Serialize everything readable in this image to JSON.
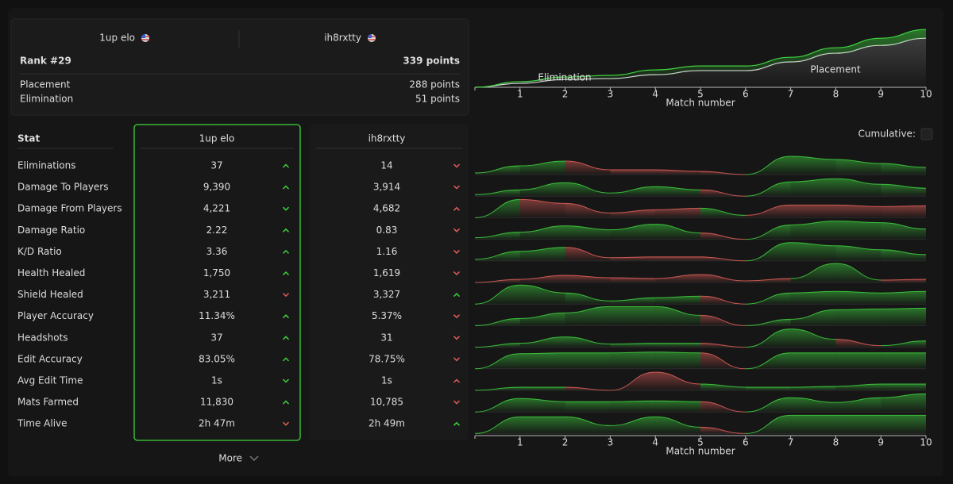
{
  "header": {
    "player1": "1up elo",
    "player2": "ih8rxtty",
    "rank": "Rank #29",
    "points": "339 points",
    "breakdown": [
      {
        "label": "Placement",
        "value": "288 points"
      },
      {
        "label": "Elimination",
        "value": "51 points"
      }
    ]
  },
  "table": {
    "stat_header": "Stat",
    "columns": [
      "1up elo",
      "ih8rxtty"
    ],
    "rows": [
      {
        "stat": "Eliminations",
        "p1": "37",
        "p1_arrow": "up",
        "p1_good": true,
        "p2": "14",
        "p2_arrow": "down",
        "p2_good": false
      },
      {
        "stat": "Damage To Players",
        "p1": "9,390",
        "p1_arrow": "up",
        "p1_good": true,
        "p2": "3,914",
        "p2_arrow": "down",
        "p2_good": false
      },
      {
        "stat": "Damage From Players",
        "p1": "4,221",
        "p1_arrow": "down",
        "p1_good": true,
        "p2": "4,682",
        "p2_arrow": "up",
        "p2_good": false
      },
      {
        "stat": "Damage Ratio",
        "p1": "2.22",
        "p1_arrow": "up",
        "p1_good": true,
        "p2": "0.83",
        "p2_arrow": "down",
        "p2_good": false
      },
      {
        "stat": "K/D Ratio",
        "p1": "3.36",
        "p1_arrow": "up",
        "p1_good": true,
        "p2": "1.16",
        "p2_arrow": "down",
        "p2_good": false
      },
      {
        "stat": "Health Healed",
        "p1": "1,750",
        "p1_arrow": "up",
        "p1_good": true,
        "p2": "1,619",
        "p2_arrow": "down",
        "p2_good": false
      },
      {
        "stat": "Shield Healed",
        "p1": "3,211",
        "p1_arrow": "down",
        "p1_good": false,
        "p2": "3,327",
        "p2_arrow": "up",
        "p2_good": true
      },
      {
        "stat": "Player Accuracy",
        "p1": "11.34%",
        "p1_arrow": "up",
        "p1_good": true,
        "p2": "5.37%",
        "p2_arrow": "down",
        "p2_good": false
      },
      {
        "stat": "Headshots",
        "p1": "37",
        "p1_arrow": "up",
        "p1_good": true,
        "p2": "31",
        "p2_arrow": "down",
        "p2_good": false
      },
      {
        "stat": "Edit Accuracy",
        "p1": "83.05%",
        "p1_arrow": "up",
        "p1_good": true,
        "p2": "78.75%",
        "p2_arrow": "down",
        "p2_good": false
      },
      {
        "stat": "Avg Edit Time",
        "p1": "1s",
        "p1_arrow": "down",
        "p1_good": true,
        "p2": "1s",
        "p2_arrow": "up",
        "p2_good": false
      },
      {
        "stat": "Mats Farmed",
        "p1": "11,830",
        "p1_arrow": "up",
        "p1_good": true,
        "p2": "10,785",
        "p2_arrow": "down",
        "p2_good": false
      },
      {
        "stat": "Time Alive",
        "p1": "2h 47m",
        "p1_arrow": "down",
        "p1_good": false,
        "p2": "2h 49m",
        "p2_arrow": "up",
        "p2_good": true
      }
    ]
  },
  "more": "More",
  "cumulative_label": "Cumulative:",
  "chart_data": [
    {
      "type": "area",
      "stacked": true,
      "x": [
        0,
        1,
        2,
        3,
        4,
        5,
        6,
        7,
        8,
        9,
        10
      ],
      "xlim": [
        0,
        10
      ],
      "xticks": [
        1,
        2,
        3,
        4,
        5,
        6,
        7,
        8,
        9,
        10
      ],
      "xlabel": "Match number",
      "ylim": [
        0,
        340
      ],
      "series": [
        {
          "name": "Placement",
          "color": "#d8d8d8",
          "values": [
            0,
            23,
            46,
            51,
            74,
            98,
            98,
            149,
            200,
            246,
            288
          ]
        },
        {
          "name": "Elimination",
          "color": "#3fd23f",
          "values": [
            0,
            10,
            14,
            19,
            28,
            27,
            27,
            27,
            32,
            42,
            51
          ]
        }
      ]
    },
    {
      "type": "ridgeline",
      "x": [
        0,
        1,
        2,
        3,
        4,
        5,
        6,
        7,
        8,
        9,
        10
      ],
      "xlim": [
        0,
        10
      ],
      "xticks": [
        1,
        2,
        3,
        4,
        5,
        6,
        7,
        8,
        9,
        10
      ],
      "xlabel": "Match number",
      "ylim": [
        0,
        25
      ],
      "up_color": "#3fd23f",
      "down_color": "#e0605a",
      "rows": [
        {
          "values": [
            2,
            11,
            17,
            6,
            6,
            4,
            0,
            23,
            19,
            14,
            9
          ],
          "up": [
            true,
            true,
            false,
            false,
            false,
            false,
            true,
            true,
            true,
            true
          ]
        },
        {
          "values": [
            2,
            8,
            17,
            4,
            12,
            8,
            0,
            18,
            22,
            15,
            10
          ],
          "up": [
            true,
            true,
            true,
            true,
            true,
            false,
            true,
            true,
            true,
            true
          ]
        },
        {
          "values": [
            0,
            23,
            18,
            6,
            10,
            12,
            3,
            16,
            16,
            14,
            15
          ],
          "up": [
            true,
            false,
            false,
            false,
            false,
            true,
            false,
            false,
            false,
            false
          ]
        },
        {
          "values": [
            2,
            9,
            17,
            12,
            19,
            8,
            0,
            18,
            23,
            21,
            13
          ],
          "up": [
            true,
            true,
            true,
            true,
            true,
            false,
            true,
            true,
            true,
            true
          ]
        },
        {
          "values": [
            2,
            12,
            17,
            4,
            5,
            5,
            0,
            23,
            19,
            14,
            8
          ],
          "up": [
            true,
            true,
            false,
            false,
            false,
            false,
            true,
            true,
            true,
            true
          ]
        },
        {
          "values": [
            0,
            4,
            9,
            6,
            5,
            10,
            2,
            5,
            24,
            3,
            4
          ],
          "up": [
            false,
            false,
            false,
            false,
            false,
            false,
            false,
            true,
            true,
            false
          ]
        },
        {
          "values": [
            0,
            24,
            14,
            4,
            8,
            10,
            0,
            14,
            16,
            14,
            16
          ],
          "up": [
            true,
            true,
            true,
            true,
            true,
            false,
            true,
            true,
            true,
            true
          ]
        },
        {
          "values": [
            0,
            9,
            16,
            24,
            24,
            13,
            0,
            8,
            20,
            21,
            22
          ],
          "up": [
            true,
            true,
            true,
            true,
            true,
            false,
            true,
            true,
            true,
            true
          ]
        },
        {
          "values": [
            0,
            5,
            13,
            4,
            5,
            5,
            0,
            23,
            10,
            2,
            8
          ],
          "up": [
            true,
            true,
            true,
            true,
            true,
            false,
            true,
            true,
            false,
            true
          ]
        },
        {
          "values": [
            0,
            19,
            20,
            20,
            21,
            20,
            0,
            20,
            20,
            20,
            20
          ],
          "up": [
            true,
            true,
            true,
            true,
            true,
            false,
            true,
            true,
            true,
            true
          ]
        },
        {
          "values": [
            0,
            4,
            4,
            0,
            23,
            8,
            4,
            4,
            5,
            8,
            8
          ],
          "up": [
            true,
            true,
            false,
            false,
            false,
            true,
            true,
            true,
            true,
            true
          ]
        },
        {
          "values": [
            0,
            17,
            13,
            13,
            14,
            13,
            0,
            18,
            12,
            18,
            23
          ],
          "up": [
            true,
            true,
            true,
            true,
            true,
            false,
            true,
            true,
            true,
            true
          ]
        },
        {
          "values": [
            0,
            21,
            21,
            10,
            21,
            8,
            0,
            23,
            23,
            23,
            23
          ],
          "up": [
            true,
            true,
            true,
            true,
            true,
            false,
            true,
            true,
            true,
            true
          ]
        }
      ]
    }
  ]
}
